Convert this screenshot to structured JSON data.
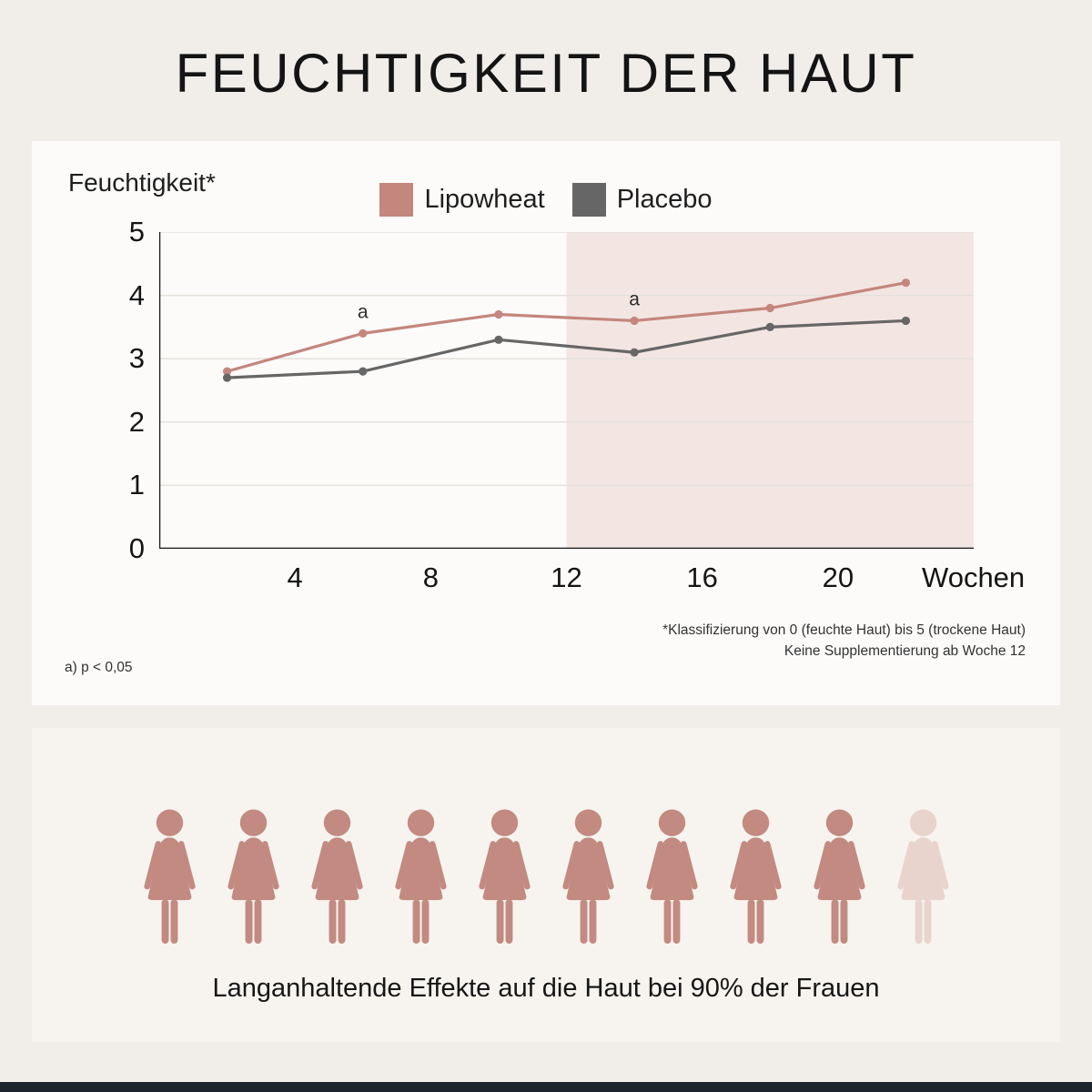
{
  "page": {
    "title": "FEUCHTIGKEIT DER HAUT",
    "background": "#f1eee9"
  },
  "chart": {
    "footnote_classification": "*Klassifizierung von 0 (feuchte Haut) bis 5 (trockene Haut)",
    "footnote_supplementation": "Keine Supplementierung ab Woche 12",
    "footnote_significance": "a) p < 0,05"
  },
  "chart_data": {
    "type": "line",
    "title": "FEUCHTIGKEIT DER HAUT",
    "xlabel": "Wochen",
    "ylabel": "Feuchtigkeit*",
    "x": [
      2,
      6,
      10,
      14,
      18,
      22
    ],
    "series": [
      {
        "name": "Lipowheat",
        "color": "#c4867d",
        "values": [
          2.8,
          3.4,
          3.7,
          3.6,
          3.8,
          4.2
        ]
      },
      {
        "name": "Placebo",
        "color": "#666666",
        "values": [
          2.7,
          2.8,
          3.3,
          3.1,
          3.5,
          3.6
        ]
      }
    ],
    "xlim": [
      0,
      24
    ],
    "ylim": [
      0,
      5
    ],
    "xticks": [
      4,
      8,
      12,
      16,
      20
    ],
    "yticks": [
      0,
      1,
      2,
      3,
      4,
      5
    ],
    "grid": true,
    "legend_position": "top",
    "shaded_region": {
      "from": 12,
      "to": 24,
      "color": "#f3e6e2",
      "meaning": "Keine Supplementierung ab Woche 12"
    },
    "annotations": [
      {
        "x": 6,
        "y": 3.4,
        "text": "a",
        "series": "Lipowheat"
      },
      {
        "x": 14,
        "y": 3.6,
        "text": "a",
        "series": "Lipowheat"
      }
    ]
  },
  "infographic": {
    "total_figures": 10,
    "highlighted_figures": 9,
    "percentage": "90%",
    "figure_color": "#c28a80",
    "faded_figure_color": "#e8d4cd",
    "caption": "Langanhaltende Effekte auf die Haut bei 90% der Frauen"
  }
}
